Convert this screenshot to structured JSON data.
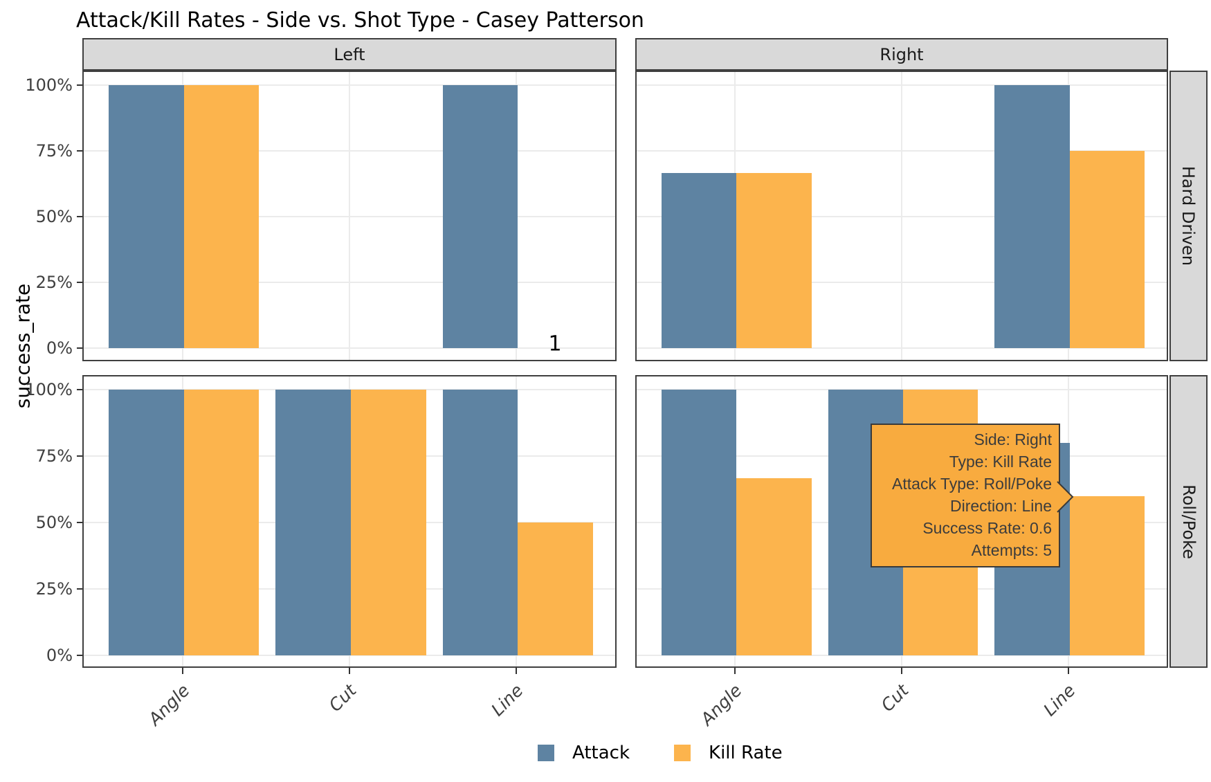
{
  "title": "Attack/Kill Rates - Side vs. Shot Type - Casey Patterson",
  "y_axis": {
    "title": "success_rate",
    "ticks": [
      "100%",
      "75%",
      "50%",
      "25%",
      "0%"
    ]
  },
  "x_axis": {
    "categories": [
      "Angle",
      "Cut",
      "Line"
    ]
  },
  "legend": [
    {
      "label": "Attack",
      "color": "#5E83A2"
    },
    {
      "label": "Kill Rate",
      "color": "#FCB44D"
    }
  ],
  "colors": {
    "attack": "#5E83A2",
    "kill_rate": "#FCB44D",
    "tooltip_bg": "#F8AB3F",
    "tooltip_border": "#3A3A3A",
    "strip_bg": "#D9D9D9",
    "panel_border": "#3F3F3F",
    "gridline": "#EBEBEB"
  },
  "annotation": {
    "text": "1",
    "panel": "Left / Hard Driven",
    "category": "Line"
  },
  "tooltip": {
    "lines": [
      "Side: Right",
      "Type: Kill Rate",
      "Attack Type: Roll/Poke",
      "Direction: Line",
      "Success Rate: 0.6",
      "Attempts: 5"
    ]
  },
  "chart_data": {
    "type": "bar",
    "facet_columns": [
      "Left",
      "Right"
    ],
    "facet_rows": [
      "Hard Driven",
      "Roll/Poke"
    ],
    "categories": [
      "Angle",
      "Cut",
      "Line"
    ],
    "ylabel": "success_rate",
    "ylim": [
      0,
      1
    ],
    "y_tick_labels": [
      "0%",
      "25%",
      "50%",
      "75%",
      "100%"
    ],
    "grid": true,
    "legend_position": "bottom",
    "panels": [
      {
        "side": "Left",
        "shot_type": "Hard Driven",
        "series": [
          {
            "name": "Attack",
            "values": [
              1.0,
              null,
              1.0
            ]
          },
          {
            "name": "Kill Rate",
            "values": [
              1.0,
              null,
              null
            ]
          }
        ]
      },
      {
        "side": "Right",
        "shot_type": "Hard Driven",
        "series": [
          {
            "name": "Attack",
            "values": [
              0.667,
              null,
              1.0
            ]
          },
          {
            "name": "Kill Rate",
            "values": [
              0.667,
              null,
              0.75
            ]
          }
        ]
      },
      {
        "side": "Left",
        "shot_type": "Roll/Poke",
        "series": [
          {
            "name": "Attack",
            "values": [
              1.0,
              1.0,
              1.0
            ]
          },
          {
            "name": "Kill Rate",
            "values": [
              1.0,
              1.0,
              0.5
            ]
          }
        ]
      },
      {
        "side": "Right",
        "shot_type": "Roll/Poke",
        "series": [
          {
            "name": "Attack",
            "values": [
              1.0,
              1.0,
              0.8
            ]
          },
          {
            "name": "Kill Rate",
            "values": [
              0.667,
              1.0,
              0.6
            ]
          }
        ]
      }
    ]
  }
}
